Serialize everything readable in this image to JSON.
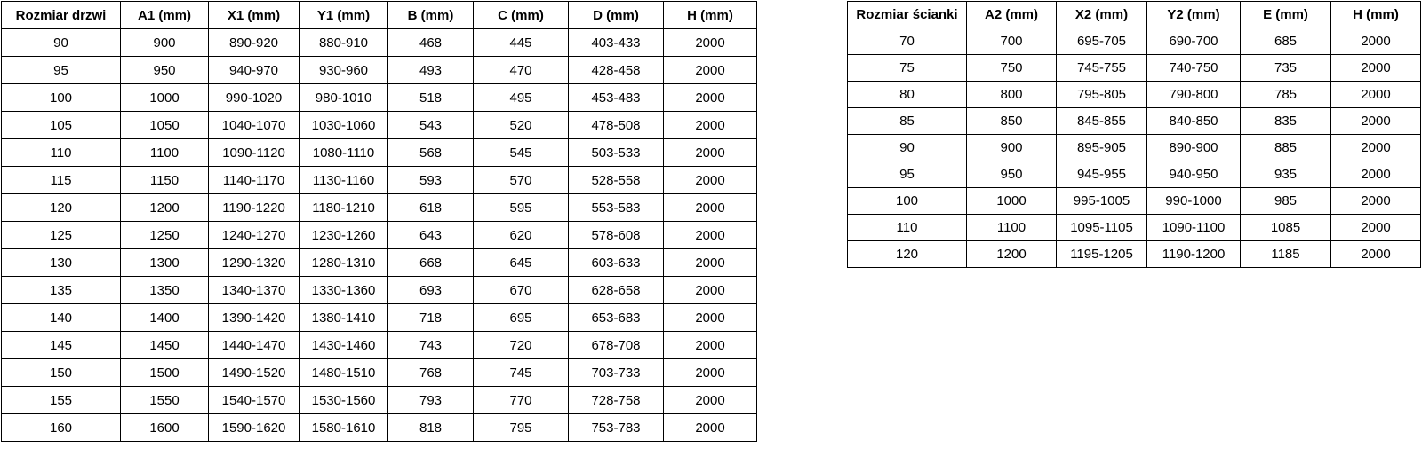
{
  "colors": {
    "background": "#ffffff",
    "border": "#000000",
    "text": "#000000"
  },
  "door_table": {
    "headers": [
      "Rozmiar drzwi",
      "A1 (mm)",
      "X1 (mm)",
      "Y1 (mm)",
      "B (mm)",
      "C (mm)",
      "D (mm)",
      "H (mm)"
    ],
    "rows": [
      [
        "90",
        "900",
        "890-920",
        "880-910",
        "468",
        "445",
        "403-433",
        "2000"
      ],
      [
        "95",
        "950",
        "940-970",
        "930-960",
        "493",
        "470",
        "428-458",
        "2000"
      ],
      [
        "100",
        "1000",
        "990-1020",
        "980-1010",
        "518",
        "495",
        "453-483",
        "2000"
      ],
      [
        "105",
        "1050",
        "1040-1070",
        "1030-1060",
        "543",
        "520",
        "478-508",
        "2000"
      ],
      [
        "110",
        "1100",
        "1090-1120",
        "1080-1110",
        "568",
        "545",
        "503-533",
        "2000"
      ],
      [
        "115",
        "1150",
        "1140-1170",
        "1130-1160",
        "593",
        "570",
        "528-558",
        "2000"
      ],
      [
        "120",
        "1200",
        "1190-1220",
        "1180-1210",
        "618",
        "595",
        "553-583",
        "2000"
      ],
      [
        "125",
        "1250",
        "1240-1270",
        "1230-1260",
        "643",
        "620",
        "578-608",
        "2000"
      ],
      [
        "130",
        "1300",
        "1290-1320",
        "1280-1310",
        "668",
        "645",
        "603-633",
        "2000"
      ],
      [
        "135",
        "1350",
        "1340-1370",
        "1330-1360",
        "693",
        "670",
        "628-658",
        "2000"
      ],
      [
        "140",
        "1400",
        "1390-1420",
        "1380-1410",
        "718",
        "695",
        "653-683",
        "2000"
      ],
      [
        "145",
        "1450",
        "1440-1470",
        "1430-1460",
        "743",
        "720",
        "678-708",
        "2000"
      ],
      [
        "150",
        "1500",
        "1490-1520",
        "1480-1510",
        "768",
        "745",
        "703-733",
        "2000"
      ],
      [
        "155",
        "1550",
        "1540-1570",
        "1530-1560",
        "793",
        "770",
        "728-758",
        "2000"
      ],
      [
        "160",
        "1600",
        "1590-1620",
        "1580-1610",
        "818",
        "795",
        "753-783",
        "2000"
      ]
    ]
  },
  "wall_table": {
    "headers": [
      "Rozmiar ścianki",
      "A2 (mm)",
      "X2 (mm)",
      "Y2 (mm)",
      "E (mm)",
      "H (mm)"
    ],
    "rows": [
      [
        "70",
        "700",
        "695-705",
        "690-700",
        "685",
        "2000"
      ],
      [
        "75",
        "750",
        "745-755",
        "740-750",
        "735",
        "2000"
      ],
      [
        "80",
        "800",
        "795-805",
        "790-800",
        "785",
        "2000"
      ],
      [
        "85",
        "850",
        "845-855",
        "840-850",
        "835",
        "2000"
      ],
      [
        "90",
        "900",
        "895-905",
        "890-900",
        "885",
        "2000"
      ],
      [
        "95",
        "950",
        "945-955",
        "940-950",
        "935",
        "2000"
      ],
      [
        "100",
        "1000",
        "995-1005",
        "990-1000",
        "985",
        "2000"
      ],
      [
        "110",
        "1100",
        "1095-1105",
        "1090-1100",
        "1085",
        "2000"
      ],
      [
        "120",
        "1200",
        "1195-1205",
        "1190-1200",
        "1185",
        "2000"
      ]
    ]
  }
}
